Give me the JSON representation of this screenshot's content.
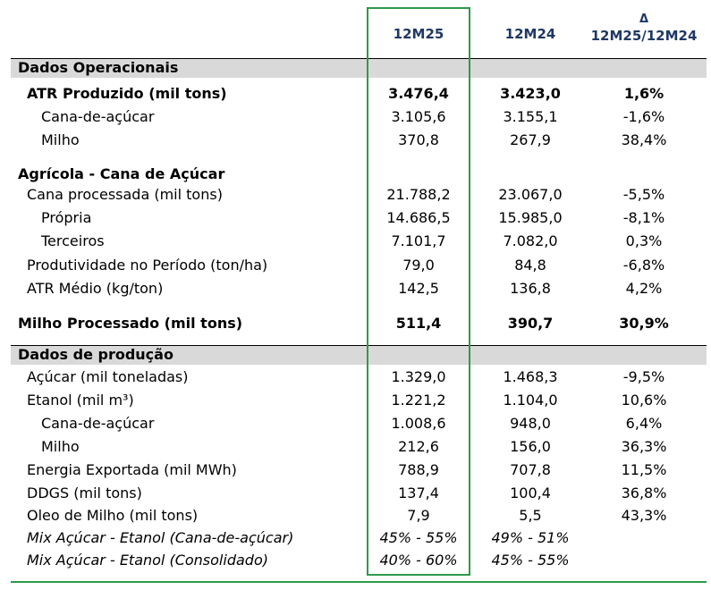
{
  "header": {
    "col1": "12M25",
    "col2": "12M24",
    "col3_symbol": "Δ",
    "col3": "12M25/12M24"
  },
  "sections": {
    "operacionais": "Dados Operacionais",
    "producao": "Dados de produção"
  },
  "rows": [
    {
      "label": "ATR Produzido (mil tons)",
      "v1": "3.476,4",
      "v2": "3.423,0",
      "v3": "1,6%"
    },
    {
      "label": "Cana-de-açúcar",
      "v1": "3.105,6",
      "v2": "3.155,1",
      "v3": "-1,6%"
    },
    {
      "label": "Milho",
      "v1": "370,8",
      "v2": "267,9",
      "v3": "38,4%"
    },
    {
      "label": "Agrícola - Cana de Açúcar",
      "v1": "",
      "v2": "",
      "v3": ""
    },
    {
      "label": "Cana processada (mil tons)",
      "v1": "21.788,2",
      "v2": "23.067,0",
      "v3": "-5,5%"
    },
    {
      "label": "Própria",
      "v1": "14.686,5",
      "v2": "15.985,0",
      "v3": "-8,1%"
    },
    {
      "label": "Terceiros",
      "v1": "7.101,7",
      "v2": "7.082,0",
      "v3": "0,3%"
    },
    {
      "label": "Produtividade no Período (ton/ha)",
      "v1": "79,0",
      "v2": "84,8",
      "v3": "-6,8%"
    },
    {
      "label": "ATR Médio (kg/ton)",
      "v1": "142,5",
      "v2": "136,8",
      "v3": "4,2%"
    },
    {
      "label": "Milho Processado (mil tons)",
      "v1": "511,4",
      "v2": "390,7",
      "v3": "30,9%"
    },
    {
      "label": "Açúcar (mil toneladas)",
      "v1": "1.329,0",
      "v2": "1.468,3",
      "v3": "-9,5%"
    },
    {
      "label": "Etanol (mil m³)",
      "v1": "1.221,2",
      "v2": "1.104,0",
      "v3": "10,6%"
    },
    {
      "label": "Cana-de-açúcar",
      "v1": "1.008,6",
      "v2": "948,0",
      "v3": "6,4%"
    },
    {
      "label": "Milho",
      "v1": "212,6",
      "v2": "156,0",
      "v3": "36,3%"
    },
    {
      "label": "Energia Exportada (mil MWh)",
      "v1": "788,9",
      "v2": "707,8",
      "v3": "11,5%"
    },
    {
      "label": "DDGS (mil tons)",
      "v1": "137,4",
      "v2": "100,4",
      "v3": "36,8%"
    },
    {
      "label": "Oleo de Milho (mil tons)",
      "v1": "7,9",
      "v2": "5,5",
      "v3": "43,3%"
    },
    {
      "label": "Mix Açúcar - Etanol (Cana-de-açúcar)",
      "v1": "45% - 55%",
      "v2": "49% - 51%",
      "v3": ""
    },
    {
      "label": "Mix Açúcar - Etanol (Consolidado)",
      "v1": "40% - 60%",
      "v2": "45% - 55%",
      "v3": ""
    }
  ],
  "colors": {
    "header_text": "#1f3864",
    "highlight_border": "#2e9a4a",
    "section_bar": "#d9d9d9"
  }
}
